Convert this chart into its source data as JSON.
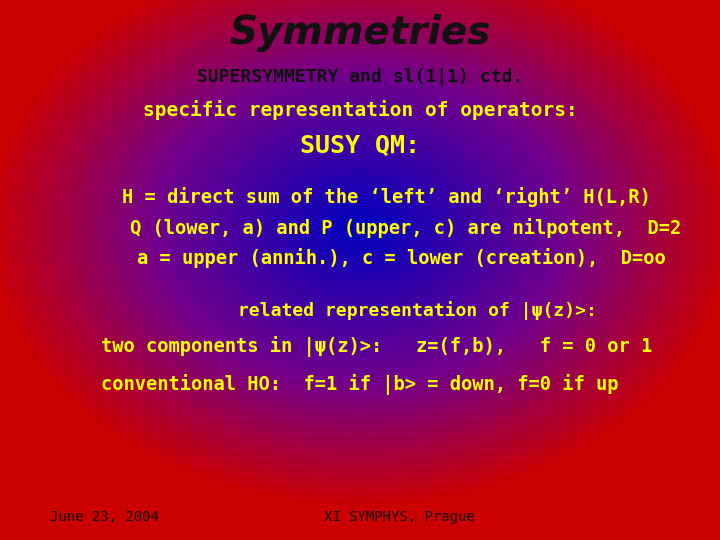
{
  "title": "Symmetries",
  "title_color": "#111111",
  "title_fontsize": 28,
  "line1": "SUPERSYMMETRY and sl(1|1) ctd.",
  "line1_color": "#111111",
  "line1_fontsize": 13,
  "line2": "specific representation of operators:",
  "line2_color": "#ffff00",
  "line2_fontsize": 14,
  "line3": "SUSY QM:",
  "line3_color": "#ffff00",
  "line3_fontsize": 18,
  "line4": "H = direct sum of the ‘left’ and ‘right’ H(L,R)",
  "line4_color": "#ffff00",
  "line4_fontsize": 13.5,
  "line5": "Q (lower, a) and P (upper, c) are nilpotent,  D=2",
  "line5_color": "#ffff00",
  "line5_fontsize": 13.5,
  "line6": "a = upper (annih.), c = lower (creation),  D=oo",
  "line6_color": "#ffff00",
  "line6_fontsize": 13.5,
  "line7": "related representation of |ψ(z)>:",
  "line7_color": "#ffff00",
  "line7_fontsize": 13,
  "line8": "two components in |ψ(z)>:   z=(f,b),   f = 0 or 1",
  "line8_color": "#ffff00",
  "line8_fontsize": 13.5,
  "line9": "conventional HO:  f=1 if |b> = down, f=0 if up",
  "line9_color": "#ffff00",
  "line9_fontsize": 13.5,
  "footer_left": "June 23, 2004",
  "footer_right": "XI SYMPHYS, Prague",
  "footer_color": "#111111",
  "footer_fontsize": 10,
  "bg_outer_r": 0.8,
  "bg_outer_g": 0.0,
  "bg_outer_b": 0.0,
  "bg_inner_r": 0.0,
  "bg_inner_g": 0.0,
  "bg_inner_b": 0.75
}
